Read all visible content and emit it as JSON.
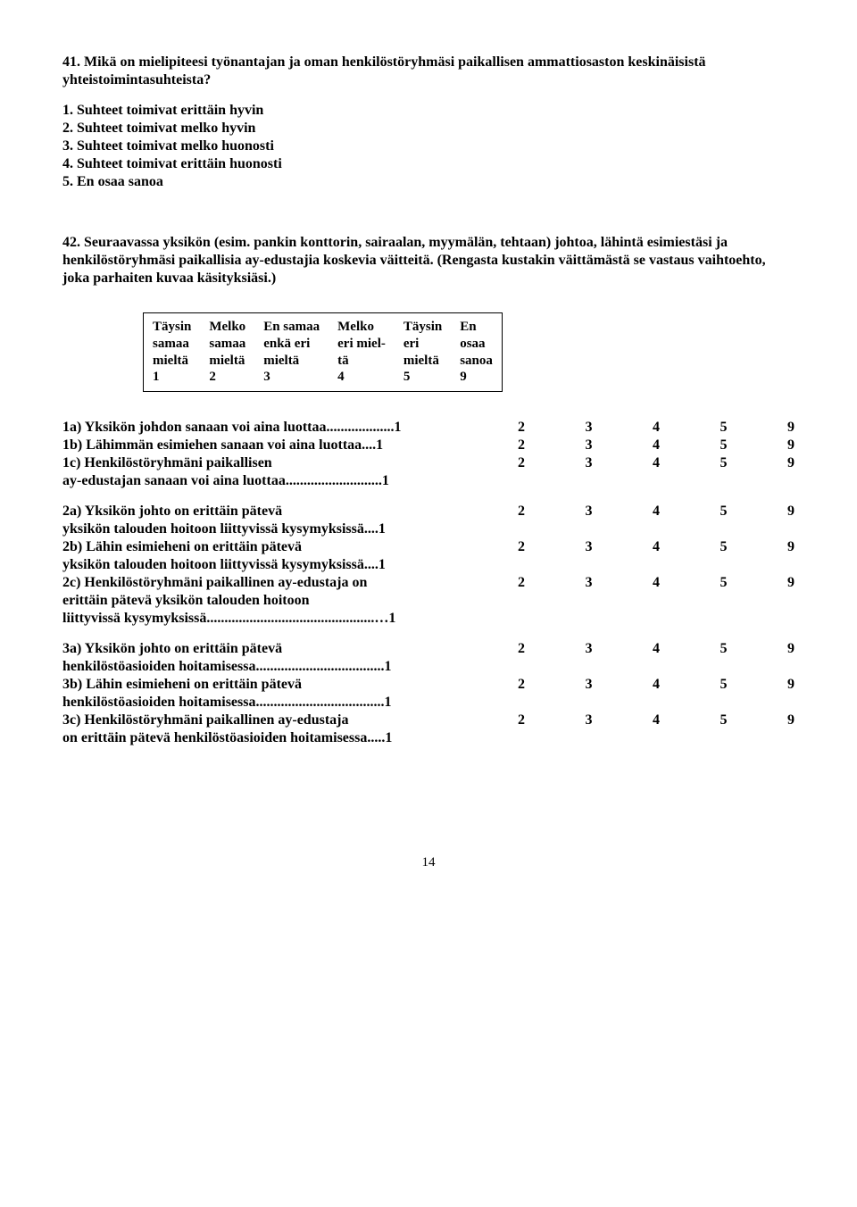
{
  "q41": {
    "title": "41. Mikä on mielipiteesi työnantajan ja oman henkilöstöryhmäsi paikallisen ammattiosaston keskinäisistä yhteistoimintasuhteista?",
    "options": [
      "1. Suhteet toimivat erittäin hyvin",
      "2. Suhteet toimivat melko hyvin",
      "3. Suhteet toimivat melko huonosti",
      "4. Suhteet toimivat erittäin huonosti",
      "5. En osaa sanoa"
    ]
  },
  "q42": {
    "title": "42. Seuraavassa yksikön (esim. pankin konttorin, sairaalan, myymälän, tehtaan) johtoa, lähintä esimiestäsi ja henkilöstöryhmäsi paikallisia ay-edustajia koskevia väitteitä. (Rengasta kustakin väittämästä se vastaus vaihtoehto, joka parhaiten kuvaa käsityksiäsi.)"
  },
  "scale_headers": [
    "Täysin\nsamaa\nmieltä\n1",
    "Melko\nsamaa\nmieltä\n2",
    "En samaa\nenkä eri\nmieltä\n3",
    "Melko\neri miel-\ntä\n4",
    "Täysin\neri\nmieltä\n5",
    "En\nosaa\nsanoa\n9"
  ],
  "groups": [
    [
      {
        "label": "1a) Yksikön johdon sanaan voi aina luottaa...................1",
        "nums": [
          "2",
          "3",
          "4",
          "5",
          "9"
        ]
      },
      {
        "label": "1b) Lähimmän esimiehen sanaan voi aina luottaa....1",
        "nums": [
          "2",
          "3",
          "4",
          "5",
          "9"
        ]
      },
      {
        "label": "1c) Henkilöstöryhmäni paikallisen\nay-edustajan sanaan voi aina luottaa...........................1",
        "nums": [
          "2",
          "3",
          "4",
          "5",
          "9"
        ]
      }
    ],
    [
      {
        "label": "2a) Yksikön johto on erittäin pätevä\nyksikön talouden hoitoon liittyvissä kysymyksissä....1",
        "nums": [
          "2",
          "3",
          "4",
          "5",
          "9"
        ]
      },
      {
        "label": "2b) Lähin esimieheni on erittäin pätevä\nyksikön talouden hoitoon liittyvissä kysymyksissä....1",
        "nums": [
          "2",
          "3",
          "4",
          "5",
          "9"
        ]
      },
      {
        "label": "2c) Henkilöstöryhmäni paikallinen ay-edustaja on\nerittäin pätevä yksikön talouden hoitoon\n liittyvissä kysymyksissä...............................................…1",
        "nums": [
          "2",
          "3",
          "4",
          "5",
          "9"
        ]
      }
    ],
    [
      {
        "label": "3a) Yksikön johto on erittäin pätevä\nhenkilöstöasioiden hoitamisessa....................................1",
        "nums": [
          "2",
          "3",
          "4",
          "5",
          "9"
        ]
      },
      {
        "label": "3b) Lähin esimieheni on erittäin pätevä\nhenkilöstöasioiden hoitamisessa....................................1",
        "nums": [
          "2",
          "3",
          "4",
          "5",
          "9"
        ]
      },
      {
        "label": "3c) Henkilöstöryhmäni paikallinen ay-edustaja\non erittäin pätevä henkilöstöasioiden hoitamisessa.....1",
        "nums": [
          "2",
          "3",
          "4",
          "5",
          "9"
        ]
      }
    ]
  ],
  "page_number": "14"
}
